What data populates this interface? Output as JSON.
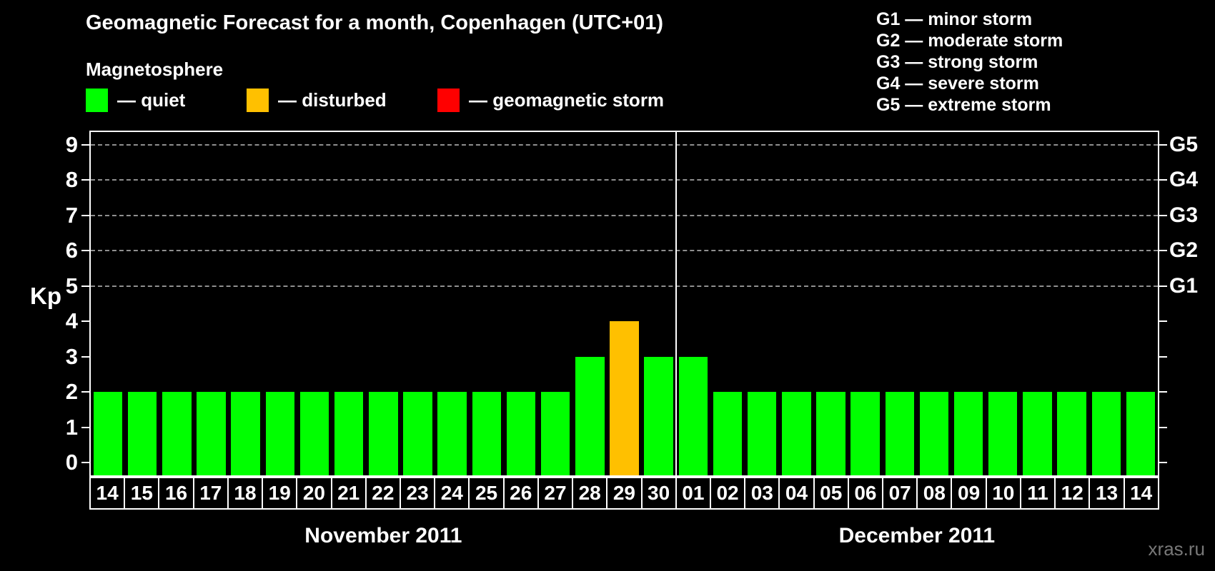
{
  "title": "Geomagnetic Forecast for a month, Copenhagen (UTC+01)",
  "subtitle": "Magnetosphere",
  "legend": {
    "items": [
      {
        "key": "quiet",
        "color": "#00ff00",
        "label": "— quiet"
      },
      {
        "key": "disturbed",
        "color": "#ffc000",
        "label": "— disturbed"
      },
      {
        "key": "storm",
        "color": "#ff0000",
        "label": "— geomagnetic storm"
      }
    ]
  },
  "gscale_legend": [
    "G1 — minor storm",
    "G2 — moderate storm",
    "G3 — strong storm",
    "G4 — severe storm",
    "G5 — extreme storm"
  ],
  "watermark": "xras.ru",
  "chart_data": {
    "type": "bar",
    "title": "Geomagnetic Forecast for a month, Copenhagen (UTC+01)",
    "ylabel": "Kp",
    "ylim": [
      0,
      9
    ],
    "yticks": [
      0,
      1,
      2,
      3,
      4,
      5,
      6,
      7,
      8,
      9
    ],
    "grid_levels": [
      5,
      6,
      7,
      8,
      9
    ],
    "grid_on": true,
    "right_axis": {
      "5": "G1",
      "6": "G2",
      "7": "G3",
      "8": "G4",
      "9": "G5"
    },
    "status_colors": {
      "quiet": "#00ff00",
      "disturbed": "#ffc000",
      "storm": "#ff0000"
    },
    "months": [
      {
        "label": "November 2011",
        "days": 17
      },
      {
        "label": "December 2011",
        "days": 14
      }
    ],
    "categories": [
      "14",
      "15",
      "16",
      "17",
      "18",
      "19",
      "20",
      "21",
      "22",
      "23",
      "24",
      "25",
      "26",
      "27",
      "28",
      "29",
      "30",
      "01",
      "02",
      "03",
      "04",
      "05",
      "06",
      "07",
      "08",
      "09",
      "10",
      "11",
      "12",
      "13",
      "14"
    ],
    "values": [
      2,
      2,
      2,
      2,
      2,
      2,
      2,
      2,
      2,
      2,
      2,
      2,
      2,
      2,
      3,
      4,
      3,
      3,
      2,
      2,
      2,
      2,
      2,
      2,
      2,
      2,
      2,
      2,
      2,
      2,
      2
    ],
    "statuses": [
      "quiet",
      "quiet",
      "quiet",
      "quiet",
      "quiet",
      "quiet",
      "quiet",
      "quiet",
      "quiet",
      "quiet",
      "quiet",
      "quiet",
      "quiet",
      "quiet",
      "quiet",
      "disturbed",
      "quiet",
      "quiet",
      "quiet",
      "quiet",
      "quiet",
      "quiet",
      "quiet",
      "quiet",
      "quiet",
      "quiet",
      "quiet",
      "quiet",
      "quiet",
      "quiet",
      "quiet"
    ]
  }
}
